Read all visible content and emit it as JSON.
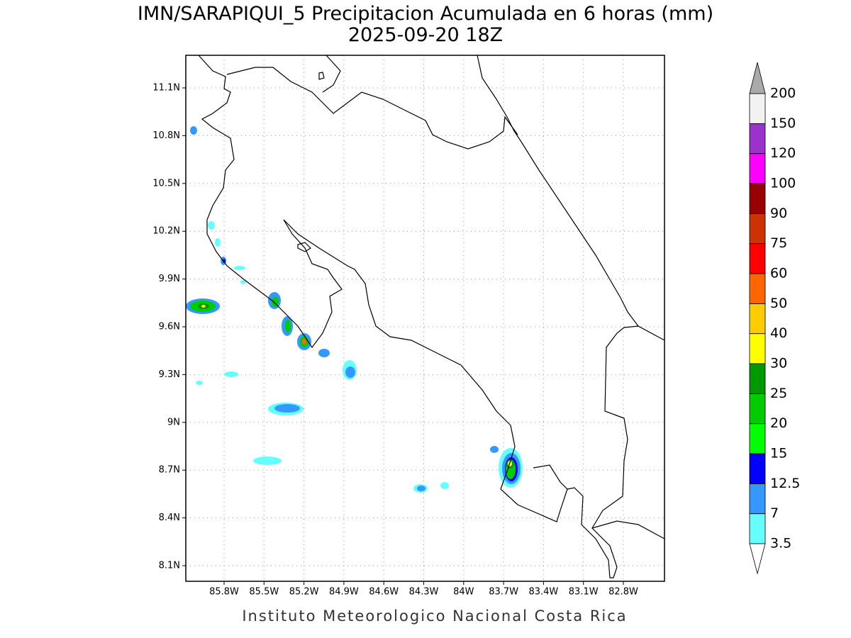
{
  "title": [
    "IMN/SARAPIQUI_5 Precipitacion Acumulada en 6 horas (mm)",
    "2025-09-20 18Z"
  ],
  "map": {
    "lon_ticks": [
      {
        "value": -85.8,
        "label": "85.8W"
      },
      {
        "value": -85.5,
        "label": "85.5W"
      },
      {
        "value": -85.2,
        "label": "85.2W"
      },
      {
        "value": -84.9,
        "label": "84.9W"
      },
      {
        "value": -84.6,
        "label": "84.6W"
      },
      {
        "value": -84.3,
        "label": "84.3W"
      },
      {
        "value": -84.0,
        "label": "84W"
      },
      {
        "value": -83.7,
        "label": "83.7W"
      },
      {
        "value": -83.4,
        "label": "83.4W"
      },
      {
        "value": -83.1,
        "label": "83.1W"
      },
      {
        "value": -82.8,
        "label": "82.8W"
      }
    ],
    "lat_ticks": [
      {
        "value": 11.1,
        "label": "11.1N"
      },
      {
        "value": 10.8,
        "label": "10.8N"
      },
      {
        "value": 10.5,
        "label": "10.5N"
      },
      {
        "value": 10.2,
        "label": "10.2N"
      },
      {
        "value": 9.9,
        "label": "9.9N"
      },
      {
        "value": 9.6,
        "label": "9.6N"
      },
      {
        "value": 9.3,
        "label": "9.3N"
      },
      {
        "value": 9.0,
        "label": "9N"
      },
      {
        "value": 8.7,
        "label": "8.7N"
      },
      {
        "value": 8.4,
        "label": "8.4N"
      },
      {
        "value": 8.1,
        "label": "8.1N"
      }
    ],
    "grid": true
  },
  "colorbar": {
    "levels": [
      3.5,
      7,
      12.5,
      15,
      20,
      25,
      30,
      40,
      50,
      60,
      75,
      90,
      100,
      120,
      150,
      200
    ],
    "colors": [
      "#66ffff",
      "#3399ff",
      "#0000ff",
      "#00ff00",
      "#00cc00",
      "#009900",
      "#ffff00",
      "#ffcc00",
      "#ff6600",
      "#ff0000",
      "#cc3300",
      "#990000",
      "#ff00ff",
      "#9933cc",
      "#f2f2f2"
    ],
    "above_color": "#aaaaaa",
    "below_color": "#ffffff"
  },
  "footer": "Instituto Meteorologico Nacional Costa Rica"
}
